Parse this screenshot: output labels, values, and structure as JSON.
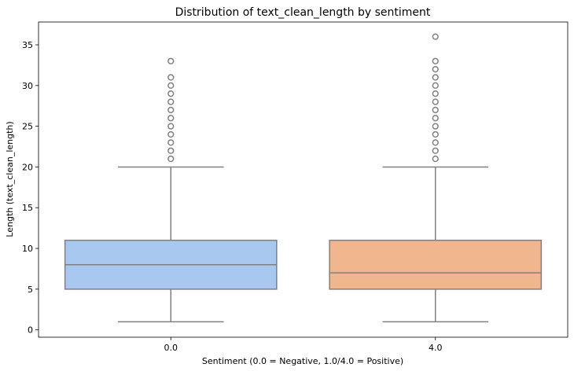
{
  "chart_data": {
    "type": "box",
    "title": "Distribution of text_clean_length by sentiment",
    "xlabel": "Sentiment (0.0 = Negative, 1.0/4.0 = Positive)",
    "ylabel": "Length (text_clean_length)",
    "ylim": [
      -0.9,
      37.8
    ],
    "yticks": [
      0,
      5,
      10,
      15,
      20,
      25,
      30,
      35
    ],
    "grid": false,
    "categories": [
      "0.0",
      "4.0"
    ],
    "boxes": [
      {
        "category": "0.0",
        "color": "#a9c8ef",
        "whisker_low": 1,
        "q1": 5,
        "median": 8,
        "q3": 11,
        "whisker_high": 20,
        "outliers": [
          21,
          22,
          23,
          24,
          25,
          26,
          27,
          28,
          29,
          30,
          31,
          33
        ]
      },
      {
        "category": "4.0",
        "color": "#f0b78f",
        "whisker_low": 1,
        "q1": 5,
        "median": 7,
        "q3": 11,
        "whisker_high": 20,
        "outliers": [
          21,
          22,
          23,
          24,
          25,
          26,
          27,
          28,
          29,
          30,
          31,
          32,
          33,
          36
        ]
      }
    ]
  }
}
